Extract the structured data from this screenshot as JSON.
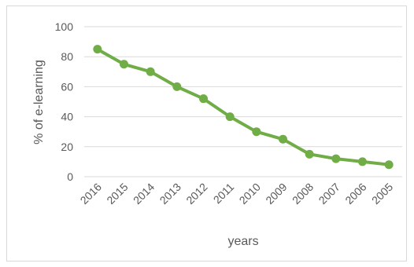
{
  "chart_data": {
    "type": "line",
    "title": "",
    "xlabel": "years",
    "ylabel": "% of e-learning",
    "categories": [
      "2016",
      "2015",
      "2014",
      "2013",
      "2012",
      "2011",
      "2010",
      "2009",
      "2008",
      "2007",
      "2006",
      "2005"
    ],
    "series": [
      {
        "values": [
          85,
          75,
          70,
          60,
          52,
          40,
          30,
          25,
          15,
          12,
          10,
          8
        ]
      }
    ],
    "ylim": [
      0,
      100
    ],
    "yticks": [
      "0",
      "20",
      "40",
      "60",
      "80",
      "100"
    ],
    "grid": true,
    "legend": "none",
    "line_color": "#70ad47",
    "grid_color": "#d9d9d9",
    "text_color": "#595959"
  }
}
